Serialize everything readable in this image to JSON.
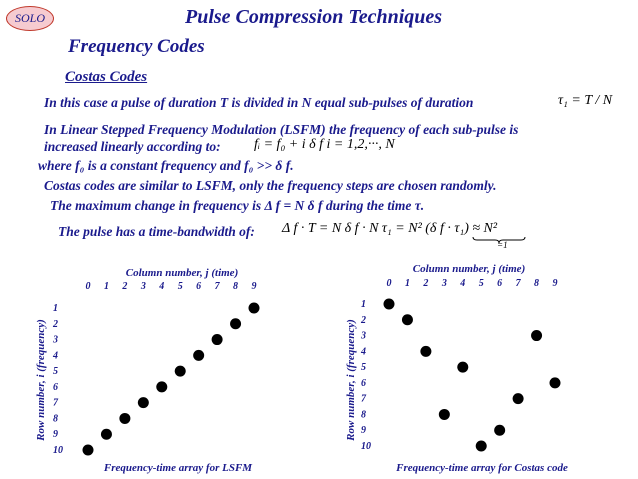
{
  "badge": "SOLO",
  "header": {
    "title": "Pulse Compression Techniques",
    "subtitle": "Frequency Codes",
    "section": "Costas Codes"
  },
  "lines": {
    "l1": "In this case a pulse of duration T is divided in N equal sub-pulses of duration",
    "l1_math": "τ₁ = T / N",
    "l2": "In Linear Stepped Frequency Modulation (LSFM) the frequency of each sub-pulse is",
    "l3": "increased linearly according to:",
    "l3_math": "fᵢ = f₀ + i δ f     i = 1,2,···, N",
    "l4": "where f₀ is a constant frequency and f₀ >> δ f.",
    "l5": "Costas codes are similar to LSFM, only the frequency steps are chosen randomly.",
    "l6": "The maximum change in frequency is Δ f = N δ f during the time τ.",
    "l7": "The pulse has a time-bandwidth of:",
    "l7_math": "Δ f · T = N δ f · N τ₁ = N² (δ f · τ₁) ≈ N²",
    "l7_under": "=1"
  },
  "chart_data": [
    {
      "type": "scatter",
      "title": "Frequency-time array for LSFM",
      "xlabel": "Column number, j (time)",
      "ylabel": "Row number, i (frequency)",
      "x_ticks": [
        0,
        1,
        2,
        3,
        4,
        5,
        6,
        7,
        8,
        9
      ],
      "y_ticks": [
        1,
        2,
        3,
        4,
        5,
        6,
        7,
        8,
        9,
        10
      ],
      "points": [
        {
          "x": 0,
          "y": 10
        },
        {
          "x": 1,
          "y": 9
        },
        {
          "x": 2,
          "y": 8
        },
        {
          "x": 3,
          "y": 7
        },
        {
          "x": 4,
          "y": 6
        },
        {
          "x": 5,
          "y": 5
        },
        {
          "x": 6,
          "y": 4
        },
        {
          "x": 7,
          "y": 3
        },
        {
          "x": 8,
          "y": 2
        },
        {
          "x": 9,
          "y": 1
        }
      ]
    },
    {
      "type": "scatter",
      "title": "Frequency-time array for Costas code",
      "xlabel": "Column number, j (time)",
      "ylabel": "Row number, i (frequency)",
      "x_ticks": [
        0,
        1,
        2,
        3,
        4,
        5,
        6,
        7,
        8,
        9
      ],
      "y_ticks": [
        1,
        2,
        3,
        4,
        5,
        6,
        7,
        8,
        9,
        10
      ],
      "points": [
        {
          "x": 0,
          "y": 1
        },
        {
          "x": 1,
          "y": 2
        },
        {
          "x": 2,
          "y": 4
        },
        {
          "x": 3,
          "y": 8
        },
        {
          "x": 4,
          "y": 5
        },
        {
          "x": 5,
          "y": 10
        },
        {
          "x": 6,
          "y": 9
        },
        {
          "x": 7,
          "y": 7
        },
        {
          "x": 8,
          "y": 3
        },
        {
          "x": 9,
          "y": 6
        }
      ]
    }
  ]
}
